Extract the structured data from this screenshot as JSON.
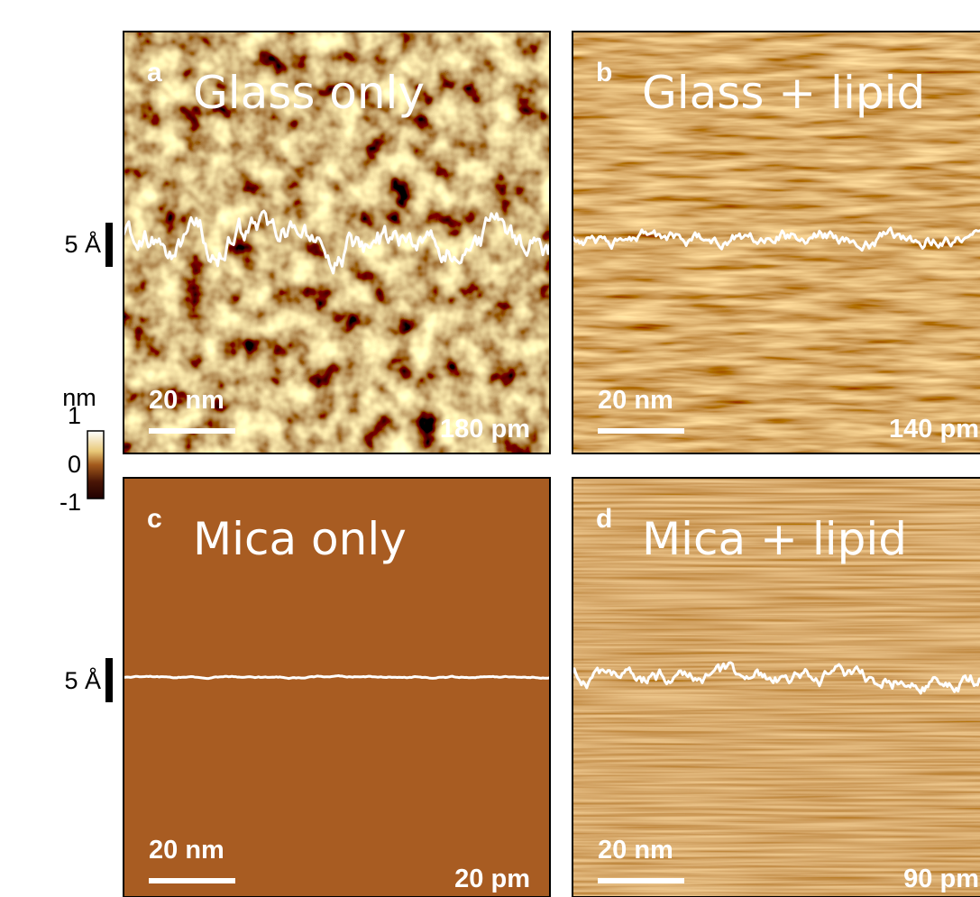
{
  "panels": [
    {
      "letter": "a",
      "title": "Glass only",
      "scale_bar": "20 nm",
      "roughness": "180 pm"
    },
    {
      "letter": "b",
      "title": "Glass + lipid",
      "scale_bar": "20 nm",
      "roughness": "140 pm"
    },
    {
      "letter": "c",
      "title": "Mica only",
      "scale_bar": "20 nm",
      "roughness": "20 pm"
    },
    {
      "letter": "d",
      "title": "Mica + lipid",
      "scale_bar": "20 nm",
      "roughness": "90 pm"
    }
  ],
  "color_scale": {
    "unit": "nm",
    "ticks": [
      "1",
      "0",
      "-1"
    ]
  },
  "profile_scale_labels": [
    "5 Å",
    "5 Å"
  ]
}
